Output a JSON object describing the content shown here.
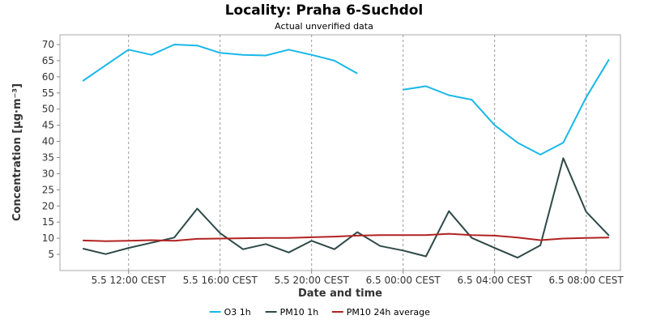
{
  "chart_data": {
    "type": "line",
    "title": "Locality: Praha 6-Suchdol",
    "subtitle": "Actual unverified data",
    "xlabel": "Date and time",
    "ylabel": "Concentration [µg·m⁻³]",
    "ylim": [
      0,
      73
    ],
    "yticks": [
      5,
      10,
      15,
      20,
      25,
      30,
      35,
      40,
      45,
      50,
      55,
      60,
      65,
      70
    ],
    "grid": true,
    "legend_position": "bottom",
    "x_hours_start": 9,
    "x_hours_end": 33.5,
    "xticks": [
      {
        "hour": 12,
        "label": "5.5 12:00 CEST"
      },
      {
        "hour": 16,
        "label": "5.5 16:00 CEST"
      },
      {
        "hour": 20,
        "label": "5.5 20:00 CEST"
      },
      {
        "hour": 24,
        "label": "6.5 00:00 CEST"
      },
      {
        "hour": 28,
        "label": "6.5 04:00 CEST"
      },
      {
        "hour": 32,
        "label": "6.5 08:00 CEST"
      }
    ],
    "series": [
      {
        "name": "O3 1h",
        "color": "#1ab8e8",
        "x": [
          10,
          11,
          12,
          13,
          14,
          15,
          16,
          17,
          18,
          19,
          20,
          21,
          22,
          23,
          24,
          25,
          26,
          27,
          28,
          29,
          30,
          31,
          32,
          33
        ],
        "values": [
          58.7,
          63.6,
          68.4,
          66.8,
          70.0,
          69.7,
          67.4,
          66.8,
          66.6,
          68.4,
          66.8,
          65.0,
          61.0,
          null,
          56.0,
          57.1,
          54.3,
          52.9,
          45.0,
          39.6,
          35.9,
          39.6,
          53.6,
          65.4
        ]
      },
      {
        "name": "PM10 1h",
        "color": "#2e4a48",
        "x": [
          10,
          11,
          12,
          13,
          14,
          15,
          16,
          17,
          18,
          19,
          20,
          21,
          22,
          23,
          24,
          25,
          26,
          27,
          28,
          29,
          30,
          31,
          32,
          33
        ],
        "values": [
          6.8,
          5.1,
          7.0,
          8.6,
          10.2,
          19.2,
          11.6,
          6.6,
          8.2,
          5.6,
          9.2,
          6.6,
          11.9,
          7.6,
          6.2,
          4.4,
          18.4,
          10.1,
          7.0,
          4.0,
          7.8,
          34.8,
          18.2,
          10.8
        ]
      },
      {
        "name": "PM10 24h average",
        "color": "#b22222",
        "x": [
          10,
          11,
          12,
          13,
          14,
          15,
          16,
          17,
          18,
          19,
          20,
          21,
          22,
          23,
          24,
          25,
          26,
          27,
          28,
          29,
          30,
          31,
          32,
          33
        ],
        "values": [
          9.3,
          9.1,
          9.2,
          9.4,
          9.2,
          9.8,
          9.9,
          10.0,
          10.1,
          10.1,
          10.3,
          10.5,
          10.8,
          11.0,
          11.0,
          11.0,
          11.4,
          11.0,
          10.8,
          10.2,
          9.4,
          9.9,
          10.1,
          10.2
        ]
      }
    ]
  }
}
